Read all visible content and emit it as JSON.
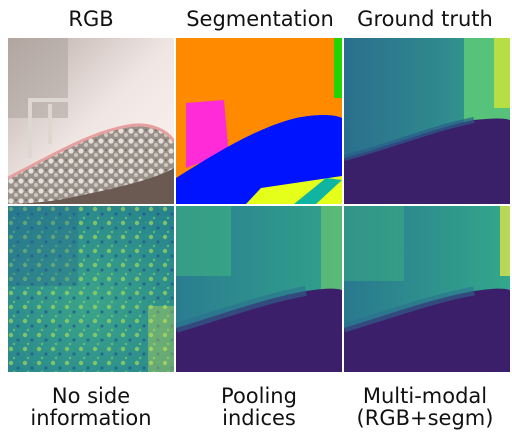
{
  "top_labels": [
    "RGB",
    "Segmentation",
    "Ground truth"
  ],
  "bottom_labels": [
    "No side\ninformation",
    "Pooling\nindices",
    "Multi-modal\n(RGB+segm)"
  ],
  "colors": {
    "seg_orange": "#ff8a00",
    "seg_blue": "#0013ff",
    "seg_magenta": "#ff2bd8",
    "seg_green": "#22d400",
    "seg_yellow": "#e6ff1a",
    "seg_teal": "#0fb5a0",
    "viridis_dark": "#3b1f6b",
    "viridis_mid": "#2b6c8f",
    "viridis_green": "#2aa98a",
    "viridis_yellow": "#d9e44a"
  }
}
